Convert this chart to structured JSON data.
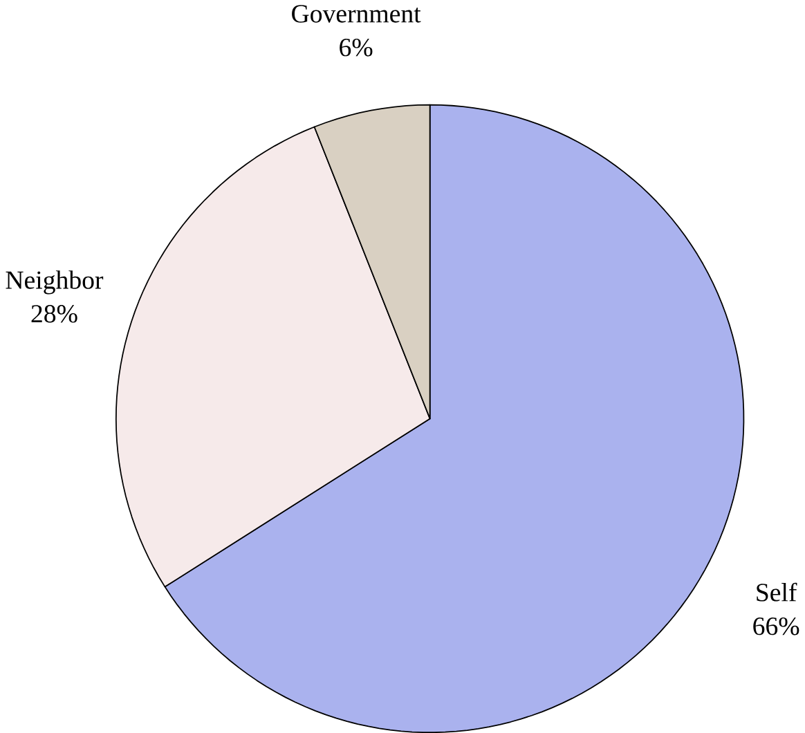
{
  "chart_data": {
    "type": "pie",
    "categories": [
      "Self",
      "Neighbor",
      "Government"
    ],
    "values": [
      66,
      28,
      6
    ],
    "value_labels": [
      "66%",
      "28%",
      "6%"
    ],
    "colors": [
      "#aab2ee",
      "#f6eaea",
      "#d9d0c2"
    ]
  }
}
